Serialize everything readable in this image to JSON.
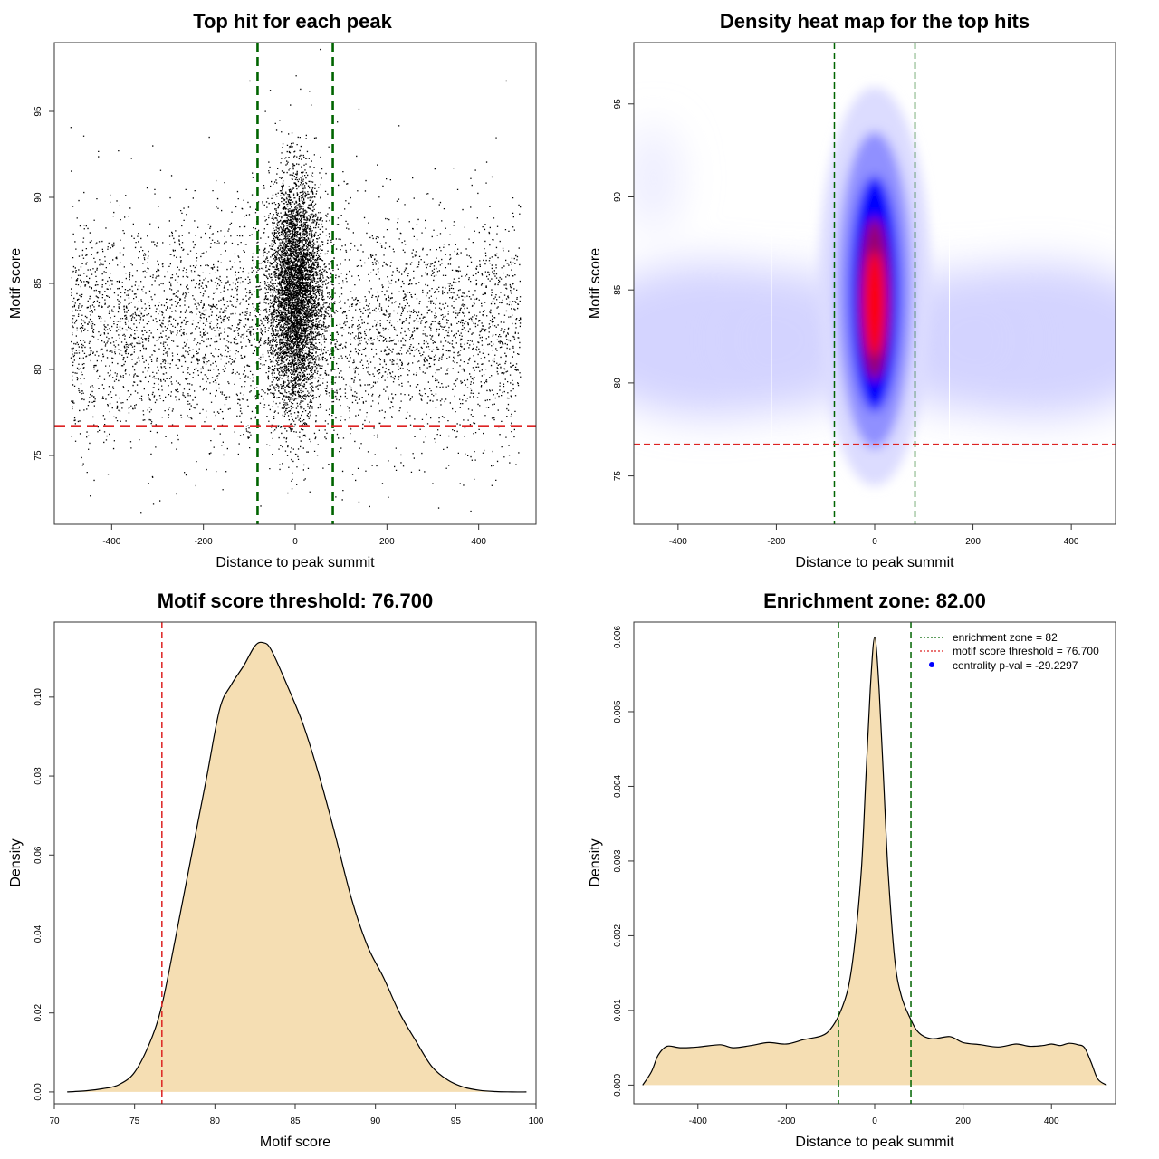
{
  "chart_data": [
    {
      "type": "scatter",
      "title": "Top hit for each peak",
      "xlabel": "Distance to peak summit",
      "ylabel": "Motif score",
      "xlim": [
        -525,
        525
      ],
      "ylim": [
        71,
        99
      ],
      "xticks": [
        -400,
        -200,
        0,
        200,
        400
      ],
      "yticks": [
        75,
        80,
        85,
        90,
        95
      ],
      "xtick_labels": [
        "-400",
        "-200",
        "0",
        "200",
        "400"
      ],
      "ytick_labels": [
        "75",
        "80",
        "85",
        "90",
        "95"
      ],
      "vlines": [
        -82,
        82
      ],
      "hline": 76.7,
      "colors": {
        "points": "#000000",
        "vlines": "#006400",
        "hline": "#dd2222"
      },
      "points": {
        "summary": "~10,000 top hits; dense central cluster near 0 bp, broad uniform background from -490 to 490",
        "background": {
          "n": 4800,
          "x_range": [
            -490,
            490
          ],
          "score_mean": 82.3,
          "score_sd": 3.4
        },
        "central": {
          "n": 5200,
          "x_mean": 0,
          "x_sd": 28,
          "score_mean": 84.5,
          "score_sd": 3.3
        },
        "samples": [
          [
            -490,
            94.1
          ],
          [
            -462,
            93.6
          ],
          [
            -430,
            92.7
          ],
          [
            -358,
            92.3
          ],
          [
            -430,
            92.4
          ],
          [
            -100,
            96.8
          ],
          [
            1,
            97.1
          ],
          [
            30,
            96.2
          ],
          [
            225,
            94.2
          ],
          [
            437,
            93.5
          ],
          [
            459,
            96.8
          ],
          [
            -310,
            72.2
          ],
          [
            -296,
            72.4
          ],
          [
            -8,
            73.1
          ],
          [
            -35,
            74.5
          ],
          [
            103,
            73.0
          ]
        ]
      }
    },
    {
      "type": "heatmap",
      "title": "Density heat map for the top hits",
      "xlabel": "Distance to peak summit",
      "ylabel": "Motif score",
      "xlim": [
        -490,
        490
      ],
      "ylim": [
        72.4,
        98.3
      ],
      "xticks": [
        -400,
        -200,
        0,
        200,
        400
      ],
      "yticks": [
        75,
        80,
        85,
        90,
        95
      ],
      "xtick_labels": [
        "-400",
        "-200",
        "0",
        "200",
        "400"
      ],
      "ytick_labels": [
        "75",
        "80",
        "85",
        "90",
        "95"
      ],
      "vlines": [
        -82,
        82
      ],
      "hline": 76.7,
      "colors": {
        "low": "#ffffff",
        "mid": "#0000ff",
        "high": "#ff0000",
        "vlines": "#006400",
        "hline": "#dd2222"
      },
      "density": {
        "peak_x": 0,
        "peak_score": 84.5,
        "core_x_sd": 22,
        "core_score_sd": 3.0,
        "background_score_center": 82.3
      }
    },
    {
      "type": "area",
      "title": "Motif score threshold: 76.700",
      "xlabel": "Motif score",
      "ylabel": "Density",
      "xlim": [
        70,
        100
      ],
      "ylim": [
        -0.003,
        0.119
      ],
      "xticks": [
        70,
        75,
        80,
        85,
        90,
        95,
        100
      ],
      "yticks": [
        0.0,
        0.02,
        0.04,
        0.06,
        0.08,
        0.1
      ],
      "xtick_labels": [
        "70",
        "75",
        "80",
        "85",
        "90",
        "95",
        "100"
      ],
      "ytick_labels": [
        "0.00",
        "0.02",
        "0.04",
        "0.06",
        "0.08",
        "0.10"
      ],
      "vline": 76.7,
      "colors": {
        "fill": "#f5deb3",
        "line": "#000000",
        "vline": "#dd2222"
      },
      "x": [
        70.8,
        72,
        73,
        74,
        75,
        76,
        76.7,
        77.5,
        78.5,
        79.5,
        80.3,
        81,
        81.8,
        82.5,
        83,
        83.5,
        84.5,
        85.5,
        86.5,
        87.5,
        88.5,
        89.5,
        90.5,
        91.5,
        92.5,
        93.5,
        94.5,
        95.5,
        96.5,
        97.5,
        98.5,
        99.4
      ],
      "y": [
        0.0,
        0.0003,
        0.0008,
        0.0018,
        0.005,
        0.013,
        0.022,
        0.038,
        0.059,
        0.08,
        0.097,
        0.103,
        0.108,
        0.113,
        0.1138,
        0.112,
        0.103,
        0.093,
        0.08,
        0.065,
        0.049,
        0.037,
        0.029,
        0.02,
        0.013,
        0.0065,
        0.003,
        0.0012,
        0.0004,
        0.0001,
        0.0,
        0.0
      ]
    },
    {
      "type": "area",
      "title": "Enrichment zone: 82.00",
      "xlabel": "Distance to peak summit",
      "ylabel": "Density",
      "xlim": [
        -545,
        545
      ],
      "ylim": [
        -0.00025,
        0.0062
      ],
      "xticks": [
        -400,
        -200,
        0,
        200,
        400
      ],
      "yticks": [
        0.0,
        0.001,
        0.002,
        0.003,
        0.004,
        0.005,
        0.006
      ],
      "xtick_labels": [
        "-400",
        "-200",
        "0",
        "200",
        "400"
      ],
      "ytick_labels": [
        "0.000",
        "0.001",
        "0.002",
        "0.003",
        "0.004",
        "0.005",
        "0.006"
      ],
      "vlines": [
        -82,
        82
      ],
      "colors": {
        "fill": "#f5deb3",
        "line": "#000000",
        "vlines": "#006400"
      },
      "x": [
        -525,
        -505,
        -490,
        -470,
        -440,
        -400,
        -350,
        -320,
        -280,
        -240,
        -200,
        -160,
        -120,
        -100,
        -80,
        -60,
        -45,
        -30,
        -20,
        -10,
        0,
        10,
        20,
        30,
        45,
        60,
        80,
        100,
        130,
        170,
        200,
        240,
        280,
        320,
        350,
        380,
        400,
        420,
        440,
        460,
        475,
        490,
        505,
        525
      ],
      "y": [
        0.0,
        0.00018,
        0.0004,
        0.00052,
        0.0005,
        0.00051,
        0.00054,
        0.0005,
        0.00053,
        0.00057,
        0.00055,
        0.00061,
        0.00066,
        0.00075,
        0.00095,
        0.0013,
        0.0019,
        0.0029,
        0.0041,
        0.0053,
        0.006,
        0.0053,
        0.0041,
        0.0029,
        0.0017,
        0.0012,
        0.0009,
        0.0007,
        0.00062,
        0.00065,
        0.00057,
        0.00054,
        0.00051,
        0.00055,
        0.00052,
        0.00053,
        0.00055,
        0.00053,
        0.00056,
        0.00054,
        0.0005,
        0.0003,
        8e-05,
        0.0
      ]
    }
  ],
  "legend": {
    "items": [
      {
        "label": "enrichment zone = 82",
        "color": "#006400",
        "kind": "line"
      },
      {
        "label": "motif score threshold = 76.700",
        "color": "#dd2222",
        "kind": "line"
      },
      {
        "label": "centrality p-val = -29.2297",
        "color": "#0000ff",
        "kind": "dot"
      }
    ]
  }
}
